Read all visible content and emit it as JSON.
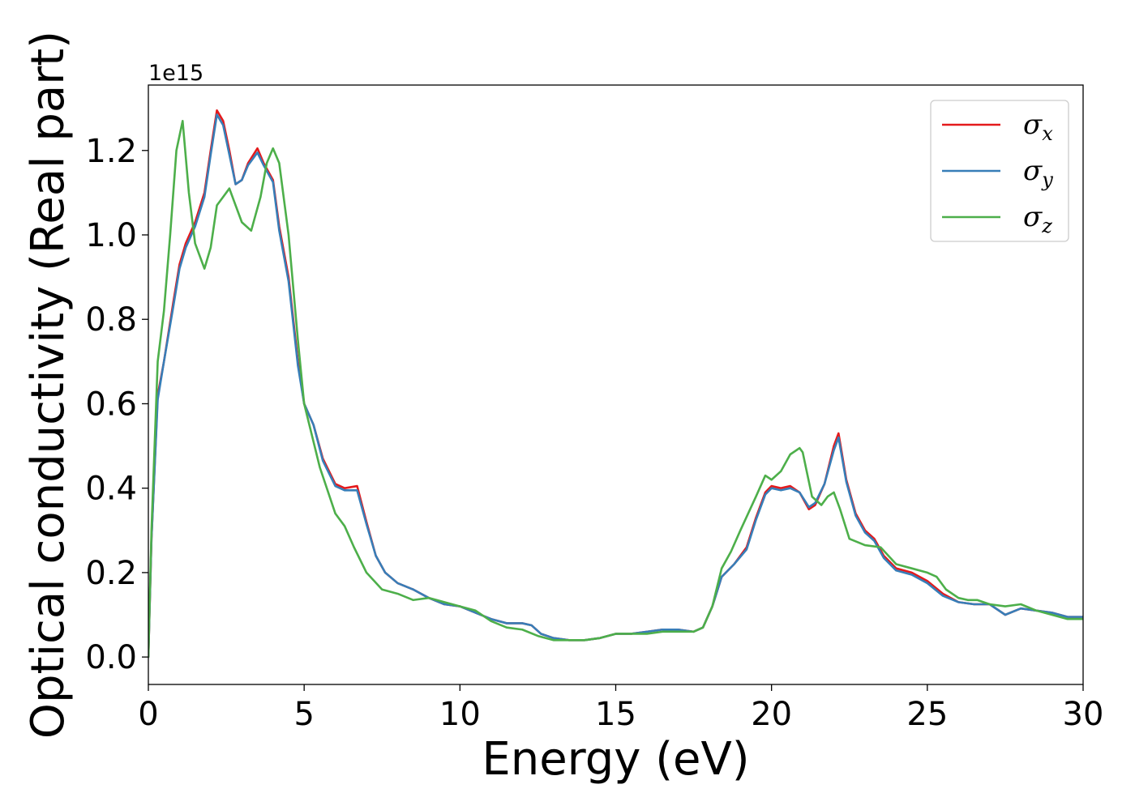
{
  "chart_data": {
    "type": "line",
    "xlabel": "Energy (eV)",
    "ylabel": "Optical conductivity (Real part)",
    "y_offset_label": "1e15",
    "xlim": [
      0,
      30
    ],
    "ylim": [
      -0.065,
      1.355
    ],
    "xticks": [
      0,
      5,
      10,
      15,
      20,
      25,
      30
    ],
    "yticks": [
      0.0,
      0.2,
      0.4,
      0.6,
      0.8,
      1.0,
      1.2
    ],
    "xtick_labels": [
      "0",
      "5",
      "10",
      "15",
      "20",
      "25",
      "30"
    ],
    "ytick_labels": [
      "0.0",
      "0.2",
      "0.4",
      "0.6",
      "0.8",
      "1.0",
      "1.2"
    ],
    "grid": false,
    "legend_position": "top-right",
    "series": [
      {
        "name": "σx",
        "legend_main": "σ",
        "legend_sub": "x",
        "color": "#e41a1c",
        "x": [
          0,
          0.1,
          0.3,
          0.5,
          0.8,
          1.0,
          1.2,
          1.5,
          1.8,
          2.0,
          2.2,
          2.4,
          2.6,
          2.8,
          3.0,
          3.2,
          3.5,
          3.7,
          4.0,
          4.2,
          4.5,
          4.8,
          5.0,
          5.3,
          5.6,
          6.0,
          6.3,
          6.7,
          7.0,
          7.3,
          7.6,
          8.0,
          8.5,
          9.0,
          9.5,
          10.0,
          10.5,
          11.0,
          11.5,
          12.0,
          12.3,
          12.6,
          13.0,
          13.5,
          14.0,
          14.5,
          15.0,
          15.5,
          16.0,
          16.5,
          17.0,
          17.5,
          17.8,
          18.1,
          18.4,
          18.8,
          19.2,
          19.5,
          19.8,
          20.0,
          20.3,
          20.6,
          20.9,
          21.2,
          21.4,
          21.7,
          22.0,
          22.15,
          22.4,
          22.7,
          23.0,
          23.3,
          23.6,
          24.0,
          24.5,
          25.0,
          25.5,
          26.0,
          26.5,
          27.0,
          27.5,
          28.0,
          28.5,
          29.0,
          29.5,
          30.0
        ],
        "y": [
          0.0,
          0.28,
          0.62,
          0.7,
          0.84,
          0.93,
          0.98,
          1.03,
          1.1,
          1.2,
          1.295,
          1.27,
          1.2,
          1.12,
          1.13,
          1.17,
          1.205,
          1.17,
          1.13,
          1.02,
          0.9,
          0.7,
          0.6,
          0.55,
          0.47,
          0.41,
          0.4,
          0.405,
          0.32,
          0.24,
          0.2,
          0.175,
          0.16,
          0.14,
          0.125,
          0.12,
          0.105,
          0.09,
          0.08,
          0.08,
          0.075,
          0.055,
          0.045,
          0.04,
          0.04,
          0.045,
          0.055,
          0.055,
          0.06,
          0.065,
          0.065,
          0.06,
          0.07,
          0.12,
          0.19,
          0.22,
          0.26,
          0.33,
          0.39,
          0.405,
          0.4,
          0.405,
          0.39,
          0.35,
          0.36,
          0.41,
          0.5,
          0.53,
          0.42,
          0.34,
          0.3,
          0.28,
          0.24,
          0.21,
          0.2,
          0.18,
          0.15,
          0.13,
          0.125,
          0.125,
          0.1,
          0.115,
          0.11,
          0.105,
          0.095,
          0.095
        ]
      },
      {
        "name": "σy",
        "legend_main": "σ",
        "legend_sub": "y",
        "color": "#377eb8",
        "x": [
          0,
          0.1,
          0.3,
          0.5,
          0.8,
          1.0,
          1.2,
          1.5,
          1.8,
          2.0,
          2.2,
          2.4,
          2.6,
          2.8,
          3.0,
          3.2,
          3.5,
          3.7,
          4.0,
          4.2,
          4.5,
          4.8,
          5.0,
          5.3,
          5.6,
          6.0,
          6.3,
          6.7,
          7.0,
          7.3,
          7.6,
          8.0,
          8.5,
          9.0,
          9.5,
          10.0,
          10.5,
          11.0,
          11.5,
          12.0,
          12.3,
          12.6,
          13.0,
          13.5,
          14.0,
          14.5,
          15.0,
          15.5,
          16.0,
          16.5,
          17.0,
          17.5,
          17.8,
          18.1,
          18.4,
          18.8,
          19.2,
          19.5,
          19.8,
          20.0,
          20.3,
          20.6,
          20.9,
          21.2,
          21.4,
          21.7,
          22.0,
          22.15,
          22.4,
          22.7,
          23.0,
          23.3,
          23.6,
          24.0,
          24.5,
          25.0,
          25.5,
          26.0,
          26.5,
          27.0,
          27.5,
          28.0,
          28.5,
          29.0,
          29.5,
          30.0
        ],
        "y": [
          0.0,
          0.28,
          0.61,
          0.7,
          0.83,
          0.92,
          0.97,
          1.02,
          1.09,
          1.19,
          1.285,
          1.26,
          1.19,
          1.12,
          1.13,
          1.165,
          1.195,
          1.165,
          1.125,
          1.01,
          0.89,
          0.69,
          0.6,
          0.55,
          0.465,
          0.405,
          0.395,
          0.395,
          0.315,
          0.24,
          0.2,
          0.175,
          0.16,
          0.14,
          0.125,
          0.12,
          0.105,
          0.09,
          0.08,
          0.08,
          0.075,
          0.055,
          0.045,
          0.04,
          0.04,
          0.045,
          0.055,
          0.055,
          0.06,
          0.065,
          0.065,
          0.06,
          0.07,
          0.12,
          0.19,
          0.22,
          0.255,
          0.325,
          0.385,
          0.4,
          0.395,
          0.4,
          0.39,
          0.355,
          0.365,
          0.41,
          0.49,
          0.52,
          0.415,
          0.335,
          0.295,
          0.275,
          0.235,
          0.205,
          0.195,
          0.175,
          0.145,
          0.13,
          0.125,
          0.125,
          0.1,
          0.115,
          0.11,
          0.105,
          0.095,
          0.095
        ]
      },
      {
        "name": "σz",
        "legend_main": "σ",
        "legend_sub": "z",
        "color": "#4daf4a",
        "x": [
          0,
          0.1,
          0.3,
          0.5,
          0.7,
          0.9,
          1.1,
          1.3,
          1.5,
          1.8,
          2.0,
          2.2,
          2.4,
          2.6,
          2.8,
          3.0,
          3.3,
          3.6,
          3.8,
          4.0,
          4.2,
          4.5,
          4.8,
          5.0,
          5.5,
          6.0,
          6.3,
          6.6,
          7.0,
          7.5,
          8.0,
          8.5,
          9.0,
          9.5,
          10.0,
          10.5,
          11.0,
          11.5,
          12.0,
          12.5,
          13.0,
          13.5,
          14.0,
          14.5,
          15.0,
          15.5,
          16.0,
          16.5,
          17.0,
          17.5,
          17.8,
          18.1,
          18.4,
          18.7,
          19.0,
          19.5,
          19.8,
          20.0,
          20.3,
          20.6,
          20.9,
          21.0,
          21.3,
          21.6,
          21.8,
          22.0,
          22.2,
          22.5,
          23.0,
          23.5,
          24.0,
          24.5,
          25.0,
          25.3,
          25.6,
          26.0,
          26.3,
          26.6,
          27.0,
          27.5,
          28.0,
          28.5,
          29.0,
          29.5,
          30.0
        ],
        "y": [
          0.0,
          0.3,
          0.7,
          0.82,
          1.0,
          1.2,
          1.27,
          1.1,
          0.98,
          0.92,
          0.97,
          1.07,
          1.09,
          1.11,
          1.07,
          1.03,
          1.01,
          1.09,
          1.17,
          1.205,
          1.17,
          1.0,
          0.75,
          0.6,
          0.45,
          0.34,
          0.31,
          0.26,
          0.2,
          0.16,
          0.15,
          0.135,
          0.14,
          0.13,
          0.12,
          0.11,
          0.085,
          0.07,
          0.065,
          0.05,
          0.04,
          0.04,
          0.04,
          0.045,
          0.055,
          0.055,
          0.055,
          0.06,
          0.06,
          0.06,
          0.07,
          0.12,
          0.21,
          0.25,
          0.3,
          0.38,
          0.43,
          0.42,
          0.44,
          0.48,
          0.495,
          0.485,
          0.38,
          0.36,
          0.38,
          0.39,
          0.35,
          0.28,
          0.265,
          0.26,
          0.22,
          0.21,
          0.2,
          0.19,
          0.16,
          0.14,
          0.135,
          0.135,
          0.125,
          0.12,
          0.125,
          0.11,
          0.1,
          0.09,
          0.09
        ]
      }
    ]
  }
}
